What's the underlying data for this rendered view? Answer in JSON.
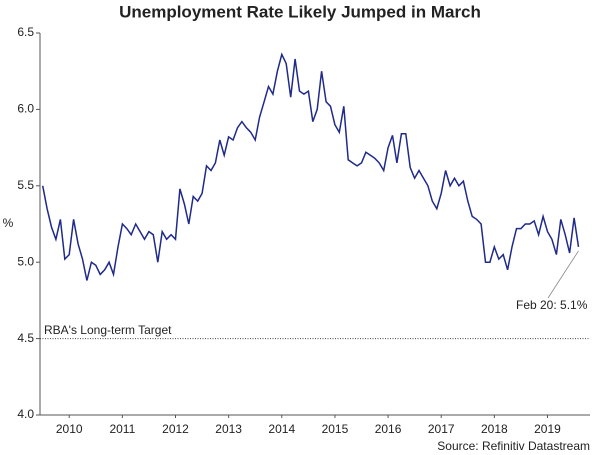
{
  "chart_data": {
    "type": "line",
    "title": "Unemployment Rate Likely Jumped in March",
    "y_label": "%",
    "source": "Source: Refinitiv Datastream",
    "annotation": "Feb 20: 5.1%",
    "target": {
      "label": "RBA's Long-term Target",
      "value": 4.5
    },
    "color": "#1f2a8a",
    "x": [
      2010.0,
      2010.083,
      2010.167,
      2010.25,
      2010.333,
      2010.417,
      2010.5,
      2010.583,
      2010.667,
      2010.75,
      2010.833,
      2010.917,
      2011.0,
      2011.083,
      2011.167,
      2011.25,
      2011.333,
      2011.417,
      2011.5,
      2011.583,
      2011.667,
      2011.75,
      2011.833,
      2011.917,
      2012.0,
      2012.083,
      2012.167,
      2012.25,
      2012.333,
      2012.417,
      2012.5,
      2012.583,
      2012.667,
      2012.75,
      2012.833,
      2012.917,
      2013.0,
      2013.083,
      2013.167,
      2013.25,
      2013.333,
      2013.417,
      2013.5,
      2013.583,
      2013.667,
      2013.75,
      2013.833,
      2013.917,
      2014.0,
      2014.083,
      2014.167,
      2014.25,
      2014.333,
      2014.417,
      2014.5,
      2014.583,
      2014.667,
      2014.75,
      2014.833,
      2014.917,
      2015.0,
      2015.083,
      2015.167,
      2015.25,
      2015.333,
      2015.417,
      2015.5,
      2015.583,
      2015.667,
      2015.75,
      2015.833,
      2015.917,
      2016.0,
      2016.083,
      2016.167,
      2016.25,
      2016.333,
      2016.417,
      2016.5,
      2016.583,
      2016.667,
      2016.75,
      2016.833,
      2016.917,
      2017.0,
      2017.083,
      2017.167,
      2017.25,
      2017.333,
      2017.417,
      2017.5,
      2017.583,
      2017.667,
      2017.75,
      2017.833,
      2017.917,
      2018.0,
      2018.083,
      2018.167,
      2018.25,
      2018.333,
      2018.417,
      2018.5,
      2018.583,
      2018.667,
      2018.75,
      2018.833,
      2018.917,
      2019.0,
      2019.083,
      2019.167,
      2019.25,
      2019.333,
      2019.417,
      2019.5,
      2019.583,
      2019.667,
      2019.75,
      2019.833,
      2019.917,
      2020.0,
      2020.083
    ],
    "values": [
      5.5,
      5.35,
      5.23,
      5.15,
      5.28,
      5.02,
      5.05,
      5.28,
      5.12,
      5.02,
      4.88,
      5.0,
      4.98,
      4.92,
      4.95,
      5.0,
      4.92,
      5.1,
      5.25,
      5.22,
      5.18,
      5.25,
      5.2,
      5.15,
      5.2,
      5.18,
      5.0,
      5.2,
      5.15,
      5.18,
      5.15,
      5.48,
      5.38,
      5.25,
      5.43,
      5.4,
      5.45,
      5.63,
      5.6,
      5.65,
      5.8,
      5.7,
      5.82,
      5.8,
      5.88,
      5.92,
      5.88,
      5.85,
      5.8,
      5.95,
      6.05,
      6.15,
      6.1,
      6.25,
      6.36,
      6.3,
      6.08,
      6.33,
      6.12,
      6.1,
      6.12,
      5.92,
      6.0,
      6.25,
      6.05,
      6.02,
      5.9,
      5.85,
      6.02,
      5.67,
      5.65,
      5.63,
      5.65,
      5.72,
      5.7,
      5.68,
      5.65,
      5.6,
      5.75,
      5.83,
      5.65,
      5.84,
      5.84,
      5.62,
      5.55,
      5.6,
      5.55,
      5.5,
      5.4,
      5.35,
      5.45,
      5.6,
      5.5,
      5.55,
      5.5,
      5.53,
      5.4,
      5.3,
      5.28,
      5.25,
      5.0,
      5.0,
      5.1,
      5.02,
      5.05,
      4.95,
      5.1,
      5.22,
      5.22,
      5.25,
      5.25,
      5.27,
      5.18,
      5.3,
      5.2,
      5.15,
      5.05,
      5.28,
      5.18,
      5.06,
      5.29,
      5.1
    ],
    "xlim": [
      2009.95,
      2020.3
    ],
    "xticks": [
      {
        "value": 2010.5,
        "label": "2010"
      },
      {
        "value": 2011.5,
        "label": "2011"
      },
      {
        "value": 2012.5,
        "label": "2012"
      },
      {
        "value": 2013.5,
        "label": "2013"
      },
      {
        "value": 2014.5,
        "label": "2014"
      },
      {
        "value": 2015.5,
        "label": "2015"
      },
      {
        "value": 2016.5,
        "label": "2016"
      },
      {
        "value": 2017.5,
        "label": "2017"
      },
      {
        "value": 2018.5,
        "label": "2018"
      },
      {
        "value": 2019.5,
        "label": "2019"
      }
    ],
    "ylim": [
      4.0,
      6.5
    ],
    "yticks": [
      {
        "value": 4,
        "label": "4.0"
      },
      4.5,
      {
        "value": 5,
        "label": "5.0"
      },
      5.5,
      {
        "value": 6,
        "label": "6.0"
      },
      6.5
    ]
  }
}
